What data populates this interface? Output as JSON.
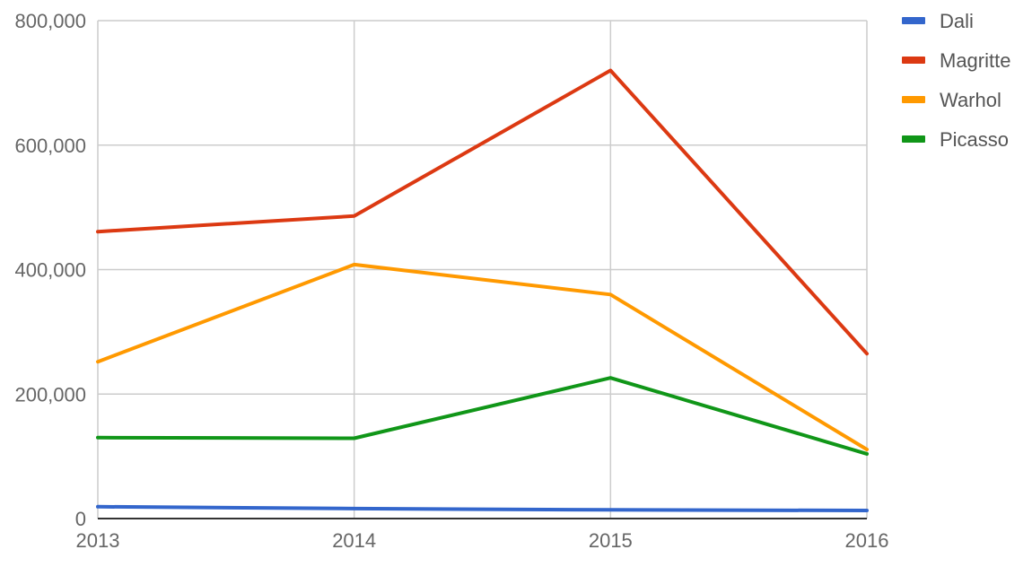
{
  "chart_data": {
    "type": "line",
    "title": "",
    "xlabel": "",
    "ylabel": "",
    "categories": [
      "2013",
      "2014",
      "2015",
      "2016"
    ],
    "ylim": [
      0,
      800000
    ],
    "yticks": [
      0,
      200000,
      400000,
      600000,
      800000
    ],
    "ytick_labels": [
      "0",
      "200,000",
      "400,000",
      "600,000",
      "800,000"
    ],
    "grid": true,
    "legend_position": "right",
    "series": [
      {
        "name": "Dali",
        "color": "#3366cc",
        "values": [
          19000,
          16000,
          14000,
          13000
        ]
      },
      {
        "name": "Magritte",
        "color": "#dc3912",
        "values": [
          461000,
          486000,
          720000,
          265000
        ]
      },
      {
        "name": "Warhol",
        "color": "#ff9900",
        "values": [
          252000,
          408000,
          360000,
          111000
        ]
      },
      {
        "name": "Picasso",
        "color": "#109618",
        "values": [
          130000,
          129000,
          226000,
          104000
        ]
      }
    ]
  }
}
